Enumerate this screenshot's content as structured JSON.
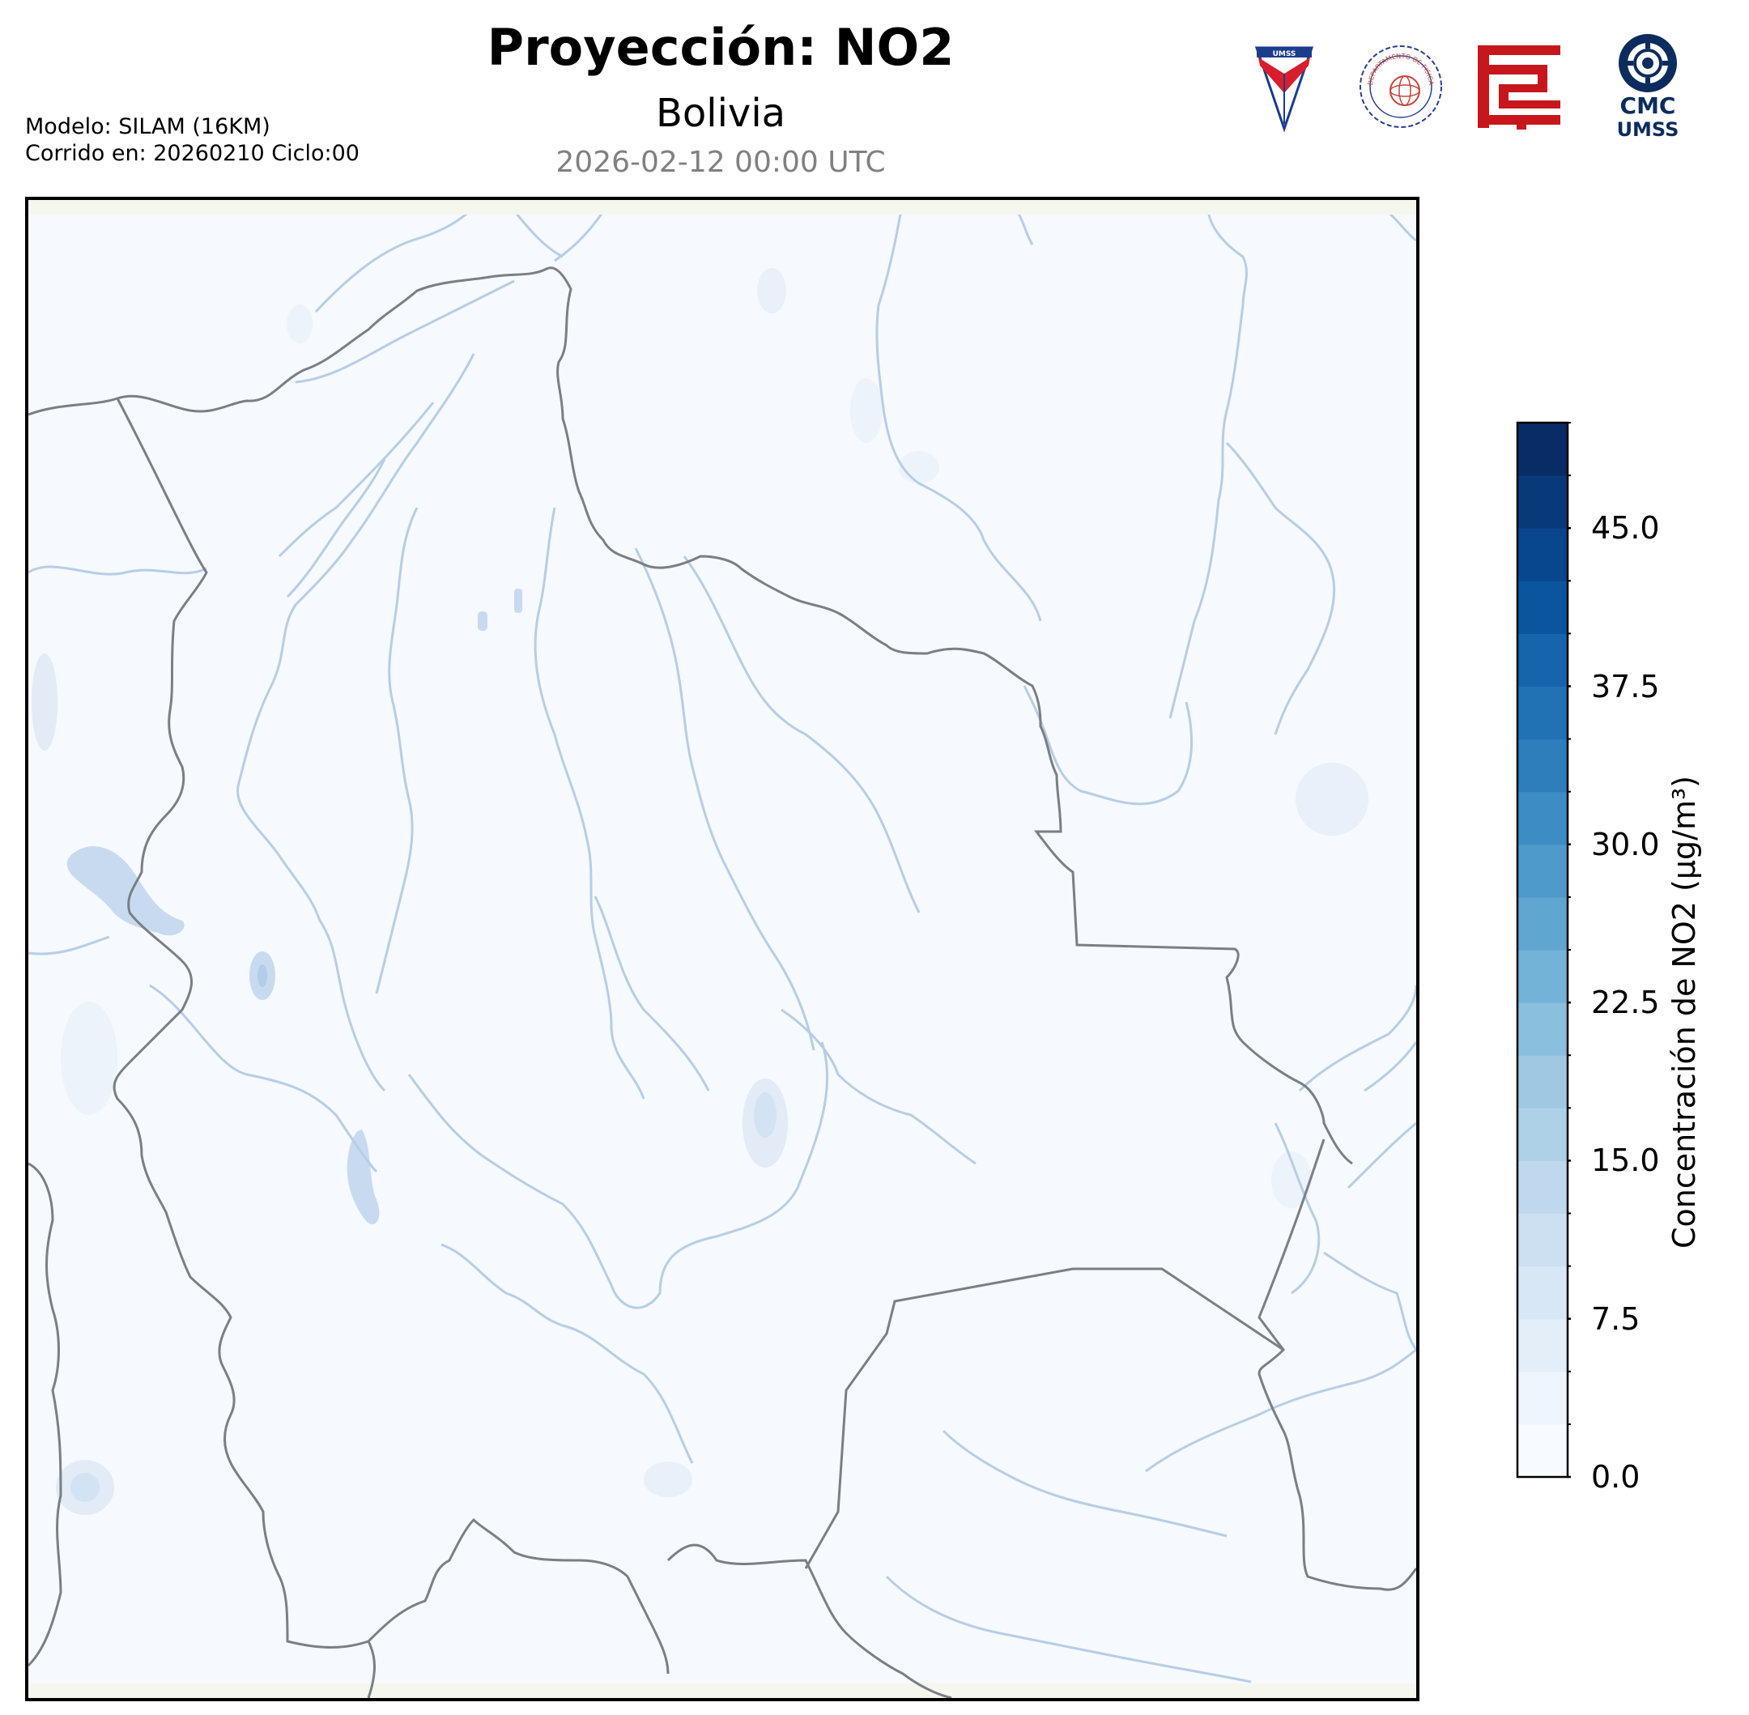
{
  "header": {
    "title": "Proyección: NO2",
    "subtitle": "Bolivia",
    "datetime": "2026-02-12 00:00 UTC"
  },
  "meta": {
    "model": "Modelo: SILAM (16KM)",
    "run": "Corrido en: 20260210 Ciclo:00"
  },
  "logos": [
    {
      "name": "umss-logo",
      "text": "UMSS"
    },
    {
      "name": "departamento-fisica-logo",
      "text": "DEPARTAMENTO DE FISICA"
    },
    {
      "name": "red-emblem-logo",
      "text": ""
    },
    {
      "name": "cmc-umss-logo",
      "text_top": "CMC",
      "text_bottom": "UMSS"
    }
  ],
  "colorbar": {
    "label": "Concentración de NO2 (µg/m³)",
    "min": 0,
    "max": 50,
    "step": 2.5,
    "tick_labels": [
      "0.0",
      "7.5",
      "15.0",
      "22.5",
      "30.0",
      "37.5",
      "45.0"
    ],
    "tick_values": [
      0,
      7.5,
      15,
      22.5,
      30,
      37.5,
      45
    ],
    "colors": [
      "#f7fbff",
      "#eef5fc",
      "#e3eef9",
      "#d8e7f5",
      "#cde0f1",
      "#c0d8ed",
      "#afd1e7",
      "#9fc9e2",
      "#8abfdd",
      "#74b3d8",
      "#5fa6d1",
      "#4e9acb",
      "#3d8dc4",
      "#2f7ebc",
      "#2171b5",
      "#1664ab",
      "#0b559f",
      "#08478d",
      "#083a7a",
      "#082c66",
      "#081d58"
    ]
  },
  "map": {
    "region": "Bolivia",
    "background_color": "#f6f9fd",
    "border_color": "#7a7f84",
    "river_color": "#b7cde6"
  }
}
